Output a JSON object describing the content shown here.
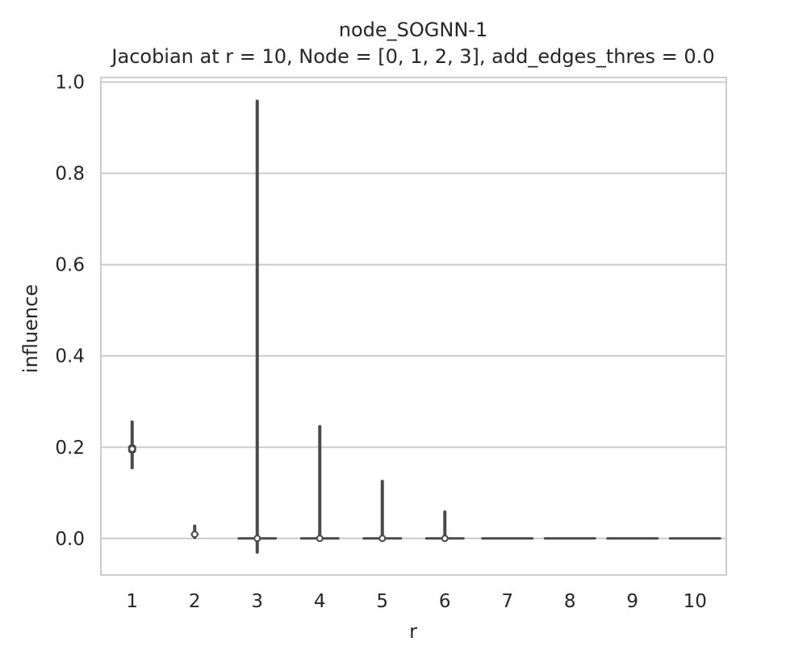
{
  "chart_data": {
    "type": "violin",
    "title": "node_SOGNN-1",
    "subtitle": "Jacobian at r = 10, Node = [0, 1, 2, 3], add_edges_thres = 0.0",
    "xlabel": "r",
    "ylabel": "influence",
    "categories": [
      "1",
      "2",
      "3",
      "4",
      "5",
      "6",
      "7",
      "8",
      "9",
      "10"
    ],
    "ylim": [
      -0.08,
      1.01
    ],
    "yticks": [
      0.0,
      0.2,
      0.4,
      0.6,
      0.8,
      1.0
    ],
    "ytick_labels": [
      "0.0",
      "0.2",
      "0.4",
      "0.6",
      "0.8",
      "1.0"
    ],
    "grid": "horizontal",
    "series": [
      {
        "values": [
          {
            "category": "1",
            "min": 0.155,
            "q1": 0.186,
            "median": 0.196,
            "q3": 0.206,
            "max": 0.255
          },
          {
            "category": "2",
            "min": 0.002,
            "q1": 0.005,
            "median": 0.009,
            "q3": 0.013,
            "max": 0.027
          },
          {
            "category": "3",
            "min": -0.03,
            "q1": 0.0,
            "median": 0.0,
            "q3": 0.0,
            "max": 0.958
          },
          {
            "category": "4",
            "min": 0.0,
            "q1": 0.0,
            "median": 0.0,
            "q3": 0.0,
            "max": 0.245
          },
          {
            "category": "5",
            "min": 0.0,
            "q1": 0.0,
            "median": 0.0,
            "q3": 0.0,
            "max": 0.125
          },
          {
            "category": "6",
            "min": 0.0,
            "q1": 0.0,
            "median": 0.0,
            "q3": 0.0,
            "max": 0.058
          },
          {
            "category": "7",
            "min": 0.0,
            "q1": 0.0,
            "median": 0.0,
            "q3": 0.0,
            "max": 0.0
          },
          {
            "category": "8",
            "min": 0.0,
            "q1": 0.0,
            "median": 0.0,
            "q3": 0.0,
            "max": 0.0
          },
          {
            "category": "9",
            "min": 0.0,
            "q1": 0.0,
            "median": 0.0,
            "q3": 0.0,
            "max": 0.0
          },
          {
            "category": "10",
            "min": 0.0,
            "q1": 0.0,
            "median": 0.0,
            "q3": 0.0,
            "max": 0.0
          }
        ]
      }
    ],
    "colors": {
      "frame": "#cccccc",
      "grid": "#cccccc",
      "violin": "#4a4a4a",
      "median_marker": "#ffffff",
      "text": "#262626"
    }
  }
}
